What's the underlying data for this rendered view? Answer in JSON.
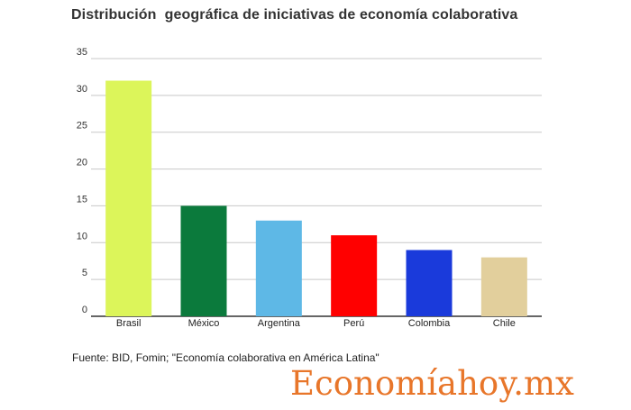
{
  "chart_data": {
    "type": "bar",
    "title": "Distribución  geográfica de iniciativas de economía colaborativa",
    "xlabel": "",
    "ylabel": "",
    "categories": [
      "Brasil",
      "México",
      "Argentina",
      "Perú",
      "Colombia",
      "Chile"
    ],
    "values": [
      32,
      15,
      13,
      11,
      9,
      8
    ],
    "bar_colors": [
      "#dcf55a",
      "#0b7a3c",
      "#5eb8e6",
      "#ff0000",
      "#1a3adb",
      "#e2cf9c"
    ],
    "ylim": [
      0,
      35
    ],
    "yticks": [
      0,
      5,
      10,
      15,
      20,
      25,
      30,
      35
    ],
    "grid": true,
    "legend": "none"
  },
  "source_note": "Fuente: BID, Fomin; \"Economía colaborativa en América Latina\"",
  "brand": {
    "part1": "Economía",
    "part2": "hoy.mx",
    "color": "#e8762a"
  }
}
